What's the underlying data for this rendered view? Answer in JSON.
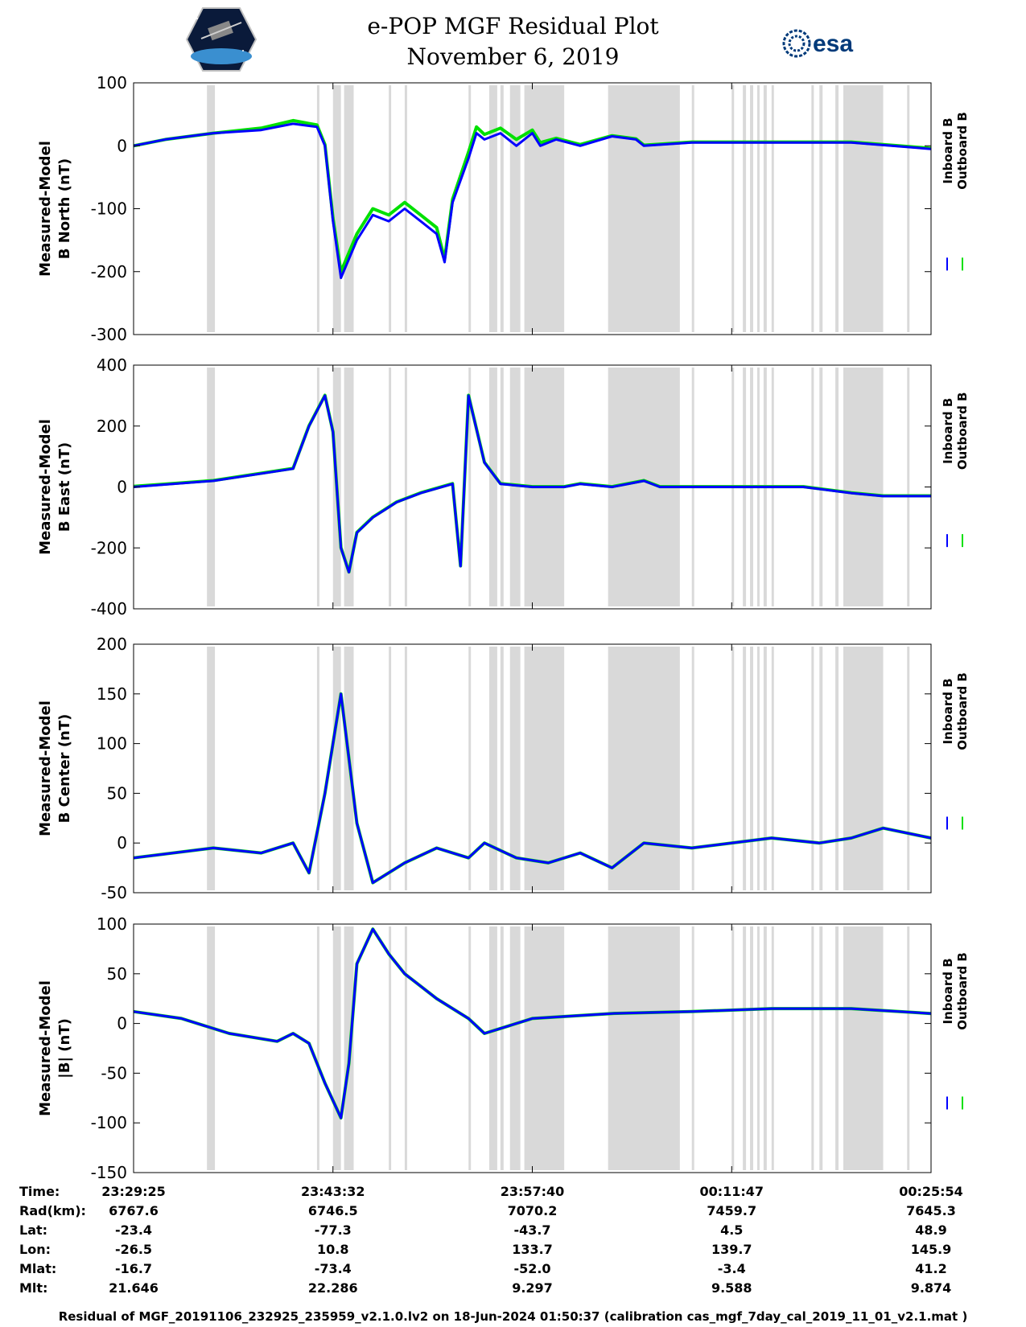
{
  "header": {
    "title_line1": "e-POP MGF Residual Plot",
    "title_line2": "November 6, 2019",
    "esa_logo_text": "esa"
  },
  "legend": {
    "inboard_label": "Inboard B",
    "outboard_label": "Outboard B",
    "inboard_color": "#0000ff",
    "outboard_color": "#00e000"
  },
  "colors": {
    "data_gap_shading": "#d9d9d9"
  },
  "chart_data": [
    {
      "type": "line",
      "ylabel_line1": "Measured-Model",
      "ylabel_line2": "B North (nT)",
      "ylim": [
        -300,
        100
      ],
      "yticks": [
        100,
        0,
        -100,
        -200,
        -300
      ],
      "series": [
        {
          "name": "Inboard B",
          "x": [
            0,
            4,
            10,
            16,
            20,
            23,
            24,
            25,
            26,
            28,
            29,
            30,
            32,
            34,
            36,
            38,
            39,
            40,
            42,
            43,
            44,
            46,
            48,
            50,
            51,
            53,
            56,
            60,
            63,
            64,
            70,
            80,
            90,
            100
          ],
          "y": [
            0,
            10,
            20,
            25,
            35,
            30,
            0,
            -120,
            -210,
            -150,
            -130,
            -110,
            -120,
            -100,
            -120,
            -140,
            -185,
            -90,
            -20,
            20,
            10,
            20,
            0,
            20,
            0,
            10,
            0,
            15,
            10,
            0,
            5,
            5,
            5,
            -5
          ]
        },
        {
          "name": "Outboard B",
          "x": [
            0,
            4,
            10,
            16,
            20,
            23,
            24,
            25,
            26,
            28,
            29,
            30,
            32,
            34,
            36,
            38,
            39,
            40,
            42,
            43,
            44,
            46,
            48,
            50,
            51,
            53,
            56,
            60,
            63,
            64,
            70,
            80,
            90,
            100
          ],
          "y": [
            0,
            10,
            20,
            28,
            40,
            33,
            2,
            -115,
            -200,
            -140,
            -120,
            -100,
            -110,
            -90,
            -110,
            -130,
            -180,
            -85,
            -10,
            30,
            18,
            28,
            10,
            25,
            5,
            12,
            2,
            16,
            11,
            1,
            6,
            6,
            6,
            -4
          ]
        }
      ]
    },
    {
      "type": "line",
      "ylabel_line1": "Measured-Model",
      "ylabel_line2": "B East (nT)",
      "ylim": [
        -400,
        400
      ],
      "yticks": [
        400,
        200,
        0,
        -200,
        -400
      ],
      "series": [
        {
          "name": "Inboard B",
          "x": [
            0,
            10,
            20,
            22,
            24,
            25,
            26,
            27,
            28,
            30,
            33,
            36,
            40,
            41,
            42,
            44,
            46,
            50,
            54,
            56,
            60,
            64,
            66,
            70,
            80,
            84,
            90,
            94,
            100
          ],
          "y": [
            0,
            20,
            60,
            200,
            300,
            180,
            -200,
            -280,
            -150,
            -100,
            -50,
            -20,
            10,
            -260,
            300,
            80,
            10,
            0,
            0,
            10,
            0,
            20,
            0,
            0,
            0,
            0,
            -20,
            -30,
            -30
          ]
        },
        {
          "name": "Outboard B",
          "x": [
            0,
            10,
            20,
            22,
            24,
            25,
            26,
            27,
            28,
            30,
            33,
            36,
            40,
            41,
            42,
            44,
            46,
            50,
            54,
            56,
            60,
            64,
            66,
            70,
            80,
            84,
            90,
            94,
            100
          ],
          "y": [
            2,
            21,
            61,
            201,
            301,
            181,
            -199,
            -279,
            -149,
            -99,
            -49,
            -19,
            11,
            -259,
            301,
            81,
            11,
            1,
            1,
            11,
            1,
            21,
            1,
            1,
            1,
            1,
            -19,
            -29,
            -29
          ]
        }
      ]
    },
    {
      "type": "line",
      "ylabel_line1": "Measured-Model",
      "ylabel_line2": "B Center (nT)",
      "ylim": [
        -50,
        200
      ],
      "yticks": [
        200,
        150,
        100,
        50,
        0,
        -50
      ],
      "series": [
        {
          "name": "Inboard B",
          "x": [
            0,
            10,
            16,
            20,
            22,
            24,
            26,
            28,
            30,
            34,
            38,
            42,
            44,
            48,
            52,
            56,
            60,
            64,
            70,
            80,
            86,
            90,
            94,
            100
          ],
          "y": [
            -15,
            -5,
            -10,
            0,
            -30,
            50,
            150,
            20,
            -40,
            -20,
            -5,
            -15,
            0,
            -15,
            -20,
            -10,
            -25,
            0,
            -5,
            5,
            0,
            5,
            15,
            5
          ]
        },
        {
          "name": "Outboard B",
          "x": [
            0,
            10,
            16,
            20,
            22,
            24,
            26,
            28,
            30,
            34,
            38,
            42,
            44,
            48,
            52,
            56,
            60,
            64,
            70,
            80,
            86,
            90,
            94,
            100
          ],
          "y": [
            -15,
            -5,
            -10,
            0,
            -30,
            50,
            150,
            20,
            -40,
            -20,
            -5,
            -15,
            0,
            -15,
            -20,
            -10,
            -25,
            0,
            -5,
            5,
            0,
            5,
            15,
            5
          ]
        }
      ]
    },
    {
      "type": "line",
      "ylabel_line1": "Measured-Model",
      "ylabel_line2": "|B| (nT)",
      "ylim": [
        -150,
        100
      ],
      "yticks": [
        100,
        50,
        0,
        -50,
        -100,
        -150
      ],
      "series": [
        {
          "name": "Inboard B",
          "x": [
            0,
            6,
            12,
            18,
            20,
            22,
            24,
            26,
            27,
            28,
            30,
            32,
            34,
            38,
            42,
            44,
            46,
            50,
            60,
            70,
            80,
            90,
            100
          ],
          "y": [
            12,
            5,
            -10,
            -18,
            -10,
            -20,
            -60,
            -95,
            -40,
            60,
            95,
            70,
            50,
            25,
            5,
            -10,
            -5,
            5,
            10,
            12,
            15,
            15,
            10
          ]
        },
        {
          "name": "Outboard B",
          "x": [
            0,
            6,
            12,
            18,
            20,
            22,
            24,
            26,
            27,
            28,
            30,
            32,
            34,
            38,
            42,
            44,
            46,
            50,
            60,
            70,
            80,
            90,
            100
          ],
          "y": [
            12,
            5,
            -10,
            -18,
            -10,
            -20,
            -60,
            -95,
            -40,
            60,
            95,
            70,
            50,
            25,
            5,
            -10,
            -5,
            5,
            10,
            12,
            15,
            15,
            10
          ]
        }
      ]
    }
  ],
  "x_axis": {
    "positions": [
      0,
      25,
      50,
      75,
      100
    ],
    "time_ticks": [
      "23:29:25",
      "23:43:32",
      "23:57:40",
      "00:11:47",
      "00:25:54"
    ]
  },
  "data_gaps": [
    [
      9.2,
      10.2
    ],
    [
      23.0,
      23.3
    ],
    [
      25.0,
      26.0
    ],
    [
      26.4,
      27.6
    ],
    [
      32.0,
      32.3
    ],
    [
      34.0,
      34.3
    ],
    [
      42.0,
      42.3
    ],
    [
      44.6,
      45.6
    ],
    [
      46.0,
      46.4
    ],
    [
      47.2,
      48.5
    ],
    [
      49.0,
      54.0
    ],
    [
      59.5,
      68.5
    ],
    [
      70.0,
      70.3
    ],
    [
      75.0,
      75.3
    ],
    [
      76.4,
      76.8
    ],
    [
      77.3,
      77.7
    ],
    [
      78.2,
      78.5
    ],
    [
      79.0,
      79.4
    ],
    [
      80.0,
      80.3
    ],
    [
      85.0,
      85.3
    ],
    [
      86.0,
      86.4
    ],
    [
      88.0,
      88.4
    ],
    [
      89.0,
      94.0
    ],
    [
      97.0,
      97.3
    ]
  ],
  "ephemeris": {
    "rows": [
      {
        "label": "Time:",
        "values": [
          "23:29:25",
          "23:43:32",
          "23:57:40",
          "00:11:47",
          "00:25:54"
        ]
      },
      {
        "label": "Rad(km):",
        "values": [
          "6767.6",
          "6746.5",
          "7070.2",
          "7459.7",
          "7645.3"
        ]
      },
      {
        "label": "Lat:",
        "values": [
          "-23.4",
          "-77.3",
          "-43.7",
          "4.5",
          "48.9"
        ]
      },
      {
        "label": "Lon:",
        "values": [
          "-26.5",
          "10.8",
          "133.7",
          "139.7",
          "145.9"
        ]
      },
      {
        "label": "Mlat:",
        "values": [
          "-16.7",
          "-73.4",
          "-52.0",
          "-3.4",
          "41.2"
        ]
      },
      {
        "label": "Mlt:",
        "values": [
          "21.646",
          "22.286",
          "9.297",
          "9.588",
          "9.874"
        ]
      }
    ]
  },
  "footer": "Residual of MGF_20191106_232925_235959_v2.1.0.lv2 on 18-Jun-2024 01:50:37 (calibration cas_mgf_7day_cal_2019_11_01_v2.1.mat )"
}
